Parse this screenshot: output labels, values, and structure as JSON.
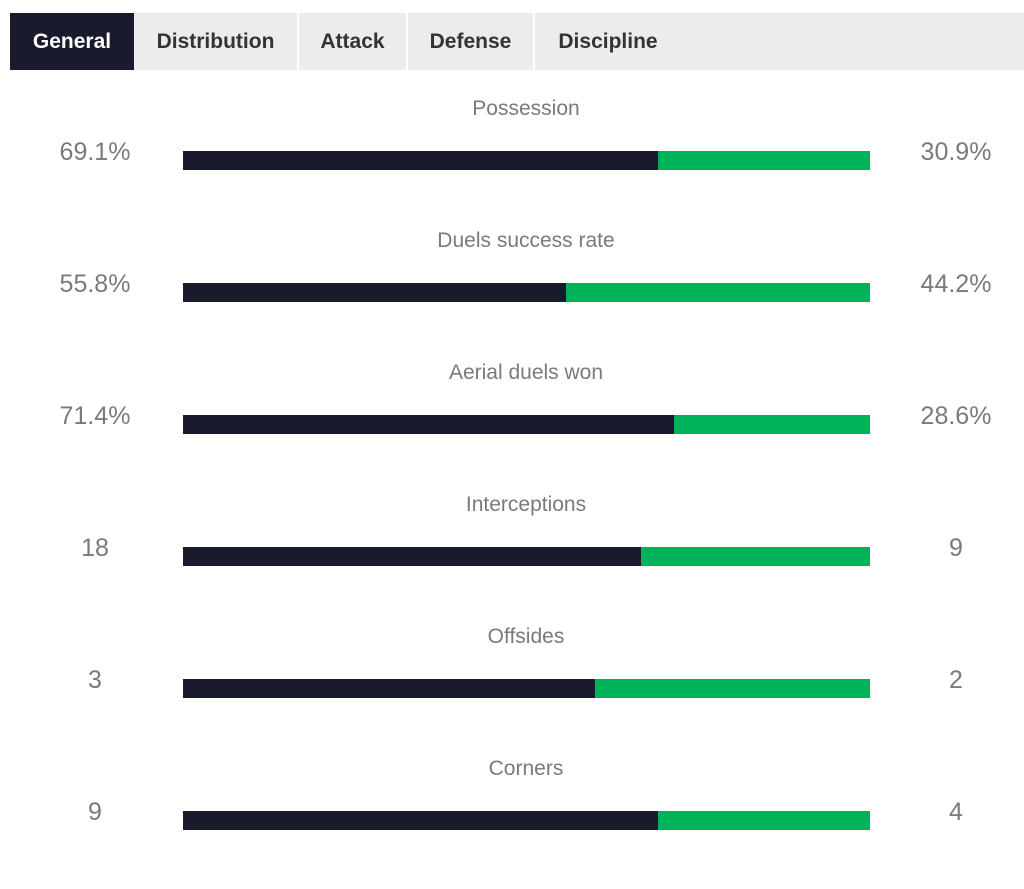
{
  "tabs": [
    {
      "label": "General",
      "active": true
    },
    {
      "label": "Distribution",
      "active": false
    },
    {
      "label": "Attack",
      "active": false
    },
    {
      "label": "Defense",
      "active": false
    },
    {
      "label": "Discipline",
      "active": false
    }
  ],
  "colors": {
    "home": "#191a2b",
    "away": "#00b35a",
    "tab_bg": "#ececec"
  },
  "stats": [
    {
      "label": "Possession",
      "home": "69.1%",
      "away": "30.9%",
      "home_share": 0.691
    },
    {
      "label": "Duels success rate",
      "home": "55.8%",
      "away": "44.2%",
      "home_share": 0.558
    },
    {
      "label": "Aerial duels won",
      "home": "71.4%",
      "away": "28.6%",
      "home_share": 0.714
    },
    {
      "label": "Interceptions",
      "home": "18",
      "away": "9",
      "home_share": 0.667
    },
    {
      "label": "Offsides",
      "home": "3",
      "away": "2",
      "home_share": 0.6
    },
    {
      "label": "Corners",
      "home": "9",
      "away": "4",
      "home_share": 0.692
    }
  ]
}
